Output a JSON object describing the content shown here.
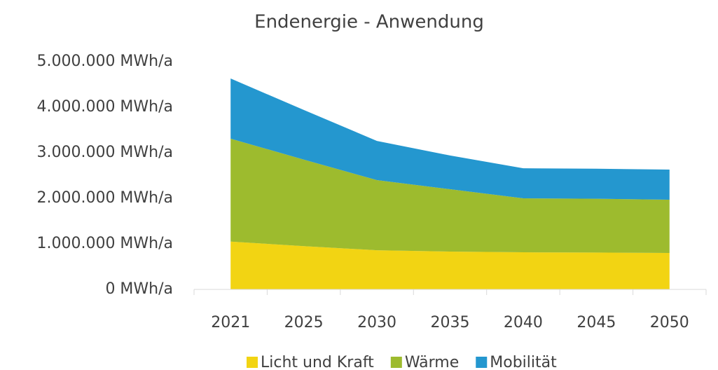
{
  "chart_data": {
    "type": "area",
    "stacked": true,
    "title": "Endenergie - Anwendung",
    "categories": [
      "2021",
      "2025",
      "2030",
      "2035",
      "2040",
      "2045",
      "2050"
    ],
    "series": [
      {
        "name": "Licht und Kraft",
        "color": "#f2d413",
        "values": [
          1050000,
          950000,
          860000,
          830000,
          815000,
          810000,
          800000
        ]
      },
      {
        "name": "Wärme",
        "color": "#9dbb2e",
        "values": [
          2260000,
          1900000,
          1540000,
          1370000,
          1185000,
          1180000,
          1170000
        ]
      },
      {
        "name": "Mobilität",
        "color": "#2497cf",
        "values": [
          1320000,
          1090000,
          860000,
          740000,
          660000,
          660000,
          660000
        ]
      }
    ],
    "ylim": [
      0,
      5000000
    ],
    "yticks": [
      {
        "value": 0,
        "label": "0 MWh/a"
      },
      {
        "value": 1000000,
        "label": "1.000.000 MWh/a"
      },
      {
        "value": 2000000,
        "label": "2.000.000 MWh/a"
      },
      {
        "value": 3000000,
        "label": "3.000.000 MWh/a"
      },
      {
        "value": 4000000,
        "label": "4.000.000 MWh/a"
      },
      {
        "value": 5000000,
        "label": "5.000.000 MWh/a"
      }
    ],
    "grid": false,
    "legend": "bottom"
  }
}
